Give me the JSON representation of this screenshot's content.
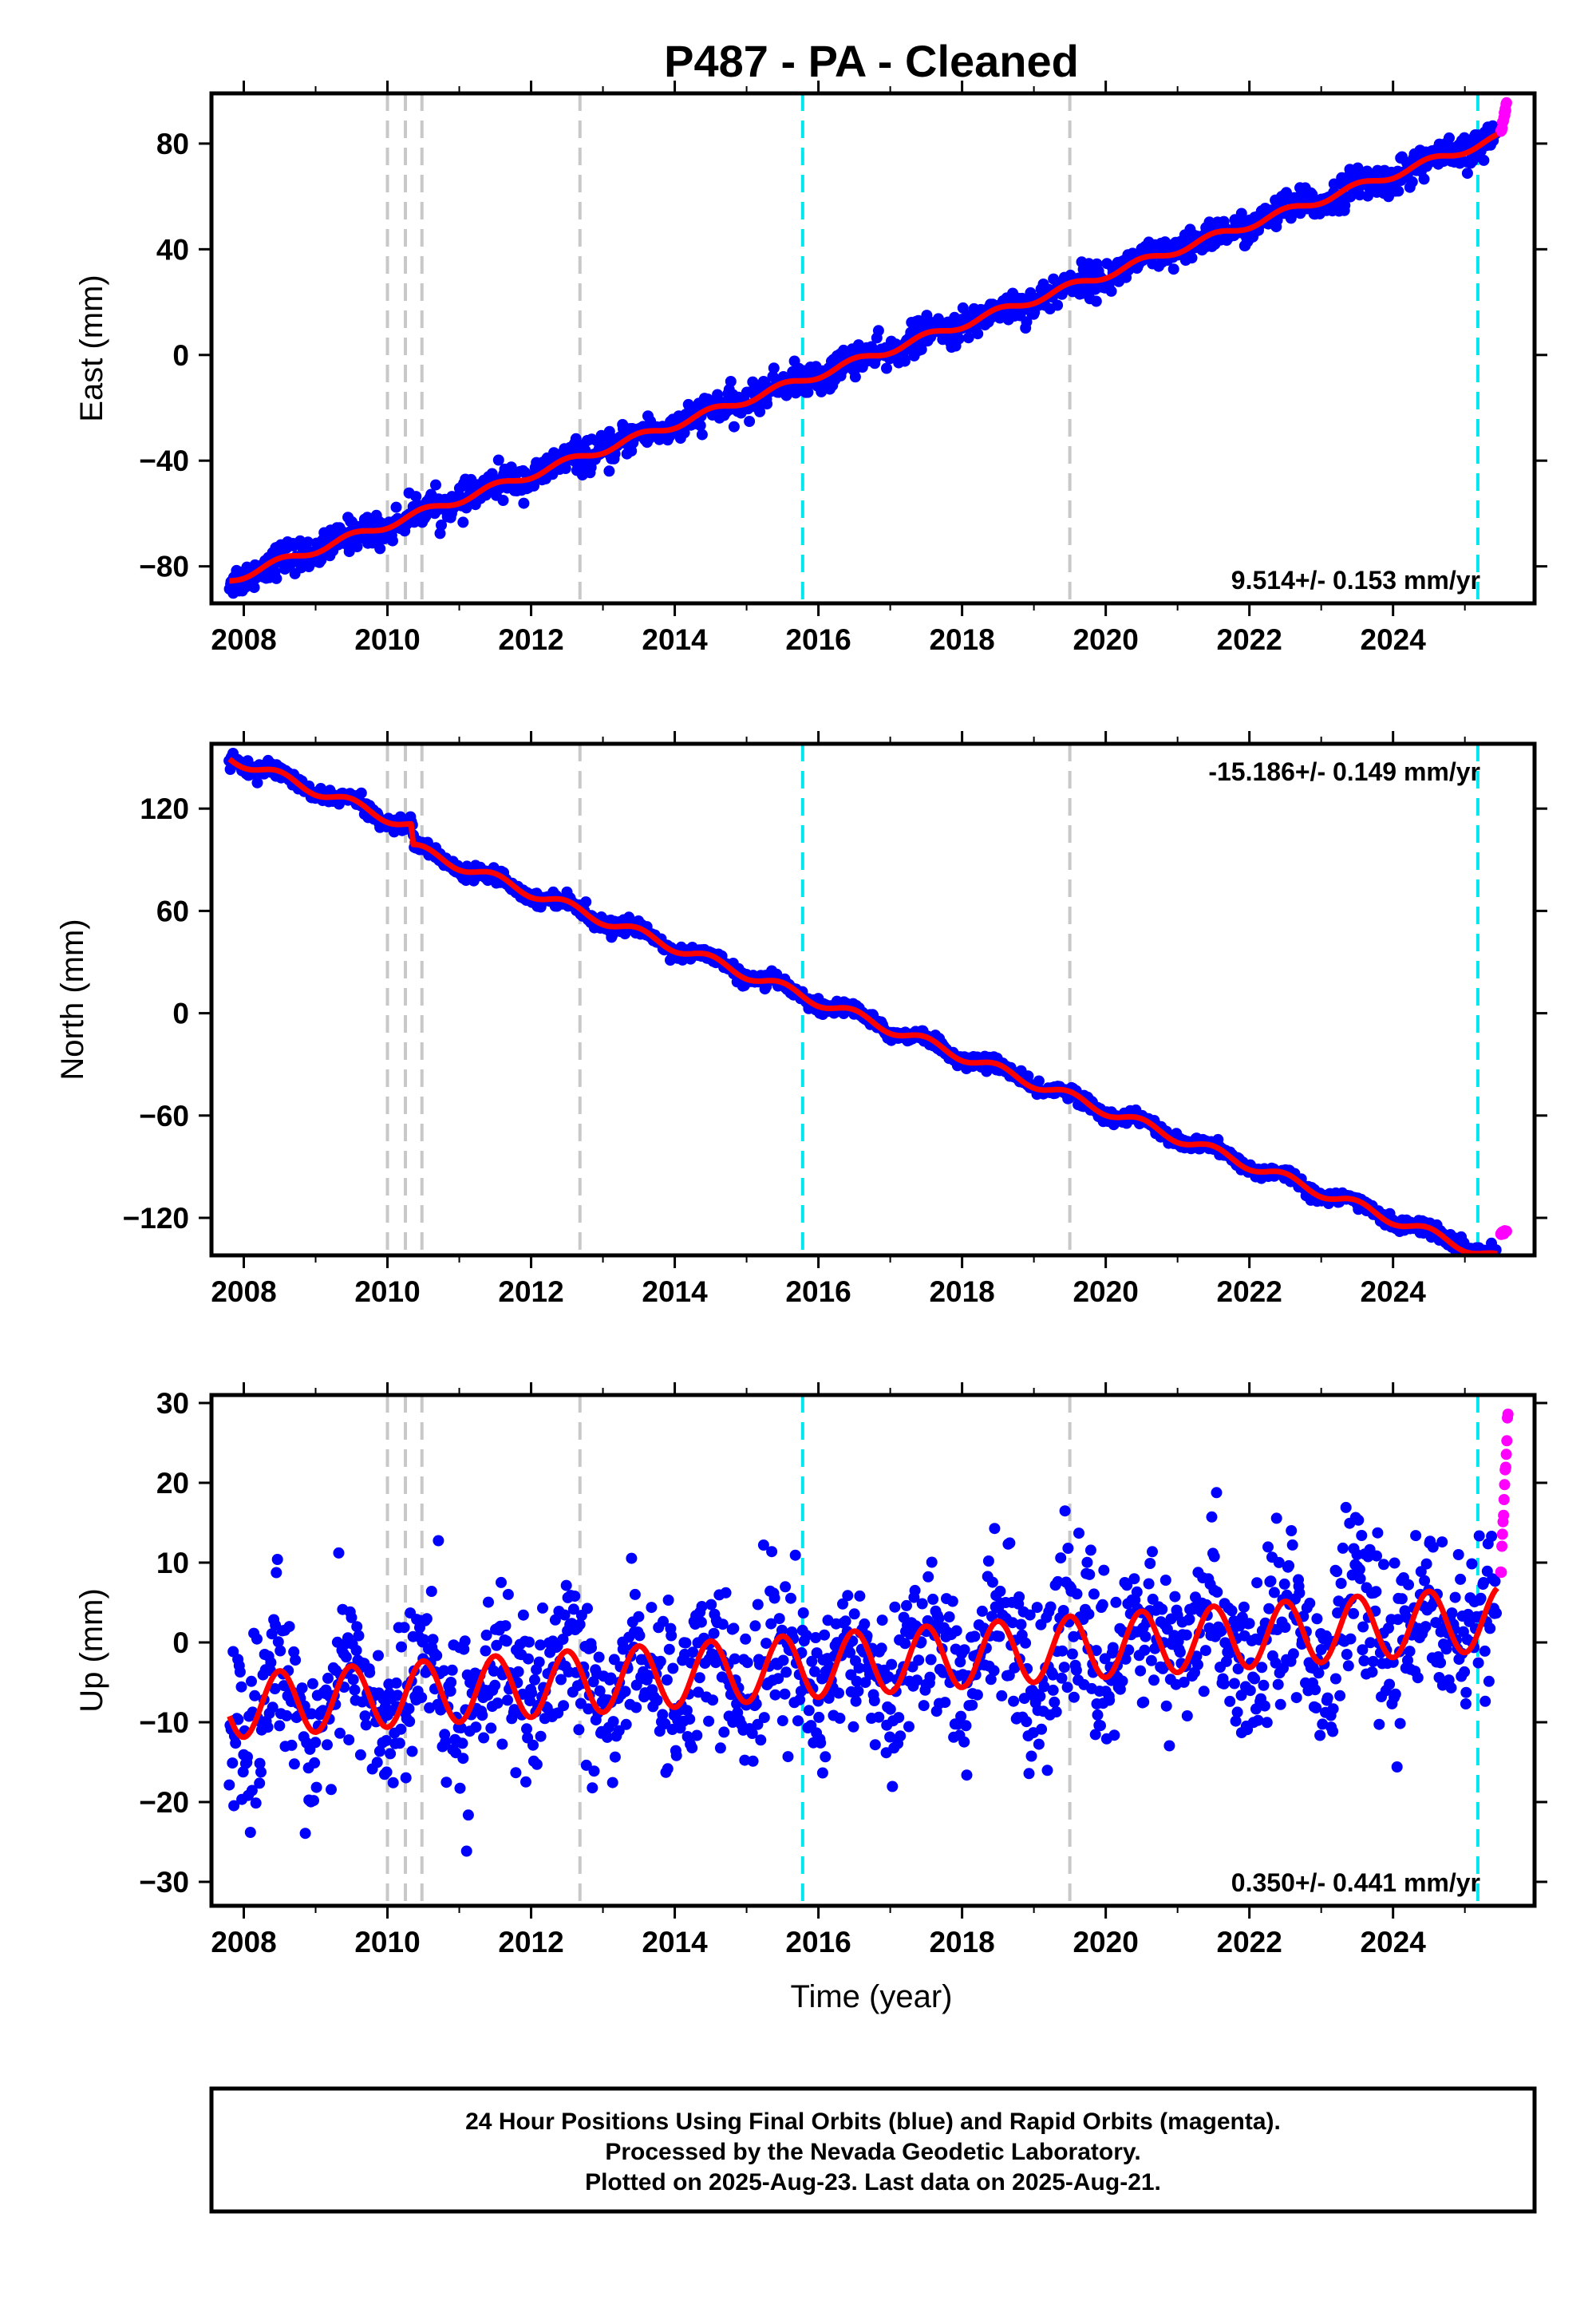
{
  "title": "P487  - PA - Cleaned",
  "chart_data": [
    {
      "type": "scatter",
      "ylabel": "East (mm)",
      "xlabel": "",
      "xlim": [
        2007.55,
        2025.97
      ],
      "ylim": [
        -94,
        99
      ],
      "yticks": [
        -80,
        -40,
        0,
        40,
        80
      ],
      "xticks": [
        2008,
        2010,
        2012,
        2014,
        2016,
        2018,
        2020,
        2022,
        2024
      ],
      "rate_label": "9.514+/- 0.153 mm/yr",
      "rate_position": "bottom-right",
      "trend": {
        "x": [
          2007.8,
          2025.45
        ],
        "y": [
          -85,
          82
        ]
      },
      "seasonal_amplitude": 1.5,
      "steps": [
        {
          "x": 2010.0,
          "dy": 0
        }
      ],
      "scatter_noise": 3,
      "rapid_points": {
        "x": [
          2025.5,
          2025.58
        ],
        "y": [
          84,
          95
        ]
      },
      "bump_note": "",
      "series": [
        {
          "name": "Final Orbits (blue)",
          "color": "#0000ff"
        },
        {
          "name": "Rapid Orbits (magenta)",
          "color": "#ff00ff"
        },
        {
          "name": "",
          "color": "#ff0000"
        }
      ]
    },
    {
      "type": "scatter",
      "ylabel": "North (mm)",
      "xlabel": "",
      "xlim": [
        2007.55,
        2025.97
      ],
      "ylim": [
        -142,
        158
      ],
      "yticks": [
        -120,
        -60,
        0,
        60,
        120
      ],
      "xticks": [
        2008,
        2010,
        2012,
        2014,
        2016,
        2018,
        2020,
        2022,
        2024
      ],
      "rate_label": "-15.186+/- 0.149 mm/yr",
      "rate_position": "top-right",
      "trend": {
        "x": [
          2007.8,
          2025.45
        ],
        "y": [
          150,
          -132
        ]
      },
      "seasonal_amplitude": 3,
      "steps": [
        {
          "x": 2010.35,
          "dy": -12
        }
      ],
      "scatter_noise": 2,
      "rapid_points": {
        "x": [
          2025.5,
          2025.58
        ],
        "y": [
          -130,
          -127
        ]
      },
      "series": [
        {
          "name": "Final Orbits (blue)",
          "color": "#0000ff"
        },
        {
          "name": "Rapid Orbits (magenta)",
          "color": "#ff00ff"
        },
        {
          "name": "",
          "color": "#ff0000"
        }
      ]
    },
    {
      "type": "scatter",
      "ylabel": "Up (mm)",
      "xlabel": "Time (year)",
      "xlim": [
        2007.55,
        2025.97
      ],
      "ylim": [
        -33,
        31
      ],
      "yticks": [
        -30,
        -20,
        -10,
        0,
        10,
        20,
        30
      ],
      "xticks": [
        2008,
        2010,
        2012,
        2014,
        2016,
        2018,
        2020,
        2022,
        2024
      ],
      "rate_label": "0.350+/- 0.441 mm/yr",
      "rate_position": "bottom-right",
      "trend": {
        "x": [
          2007.8,
          2025.45
        ],
        "y": [
          -8,
          3
        ]
      },
      "seasonal_amplitude": 4,
      "steps": [],
      "scatter_noise": 5,
      "rapid_points": {
        "x": [
          2025.5,
          2025.6
        ],
        "y": [
          8,
          29.5
        ]
      },
      "series": [
        {
          "name": "Final Orbits (blue)",
          "color": "#0000ff"
        },
        {
          "name": "Rapid Orbits (magenta)",
          "color": "#ff00ff"
        },
        {
          "name": "",
          "color": "#ff0000"
        }
      ]
    }
  ],
  "event_lines": {
    "gray": [
      2010.0,
      2010.25,
      2010.48,
      2012.68,
      2019.5
    ],
    "cyan": [
      2015.78,
      2025.18
    ],
    "gray_color": "#c8c8c8",
    "cyan_color": "#00e5ee"
  },
  "footer": {
    "line1": "24 Hour Positions Using Final Orbits (blue) and Rapid Orbits (magenta).",
    "line2": "Processed by the Nevada Geodetic Laboratory.",
    "line3": "Plotted on 2025-Aug-23. Last data on 2025-Aug-21."
  }
}
